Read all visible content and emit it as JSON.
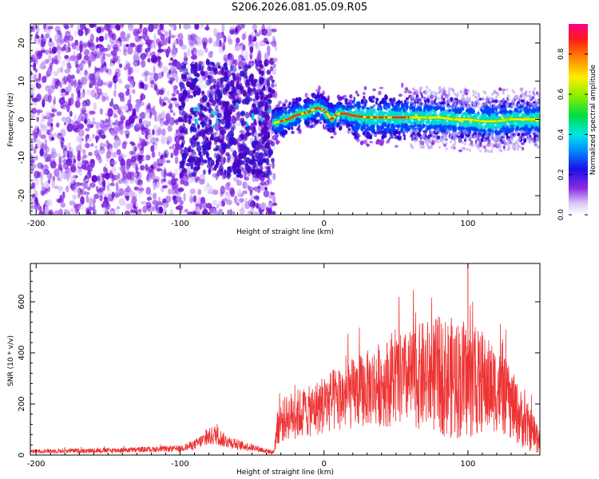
{
  "title": "S206.2026.081.05.09.R05",
  "chart_data": [
    {
      "type": "heatmap",
      "name": "spectrogram",
      "xlabel": "Height of straight line (km)",
      "ylabel": "Frequency (Hz)",
      "xlim": [
        -204,
        150
      ],
      "ylim": [
        -25,
        25
      ],
      "xticks": [
        -200,
        -100,
        0,
        100
      ],
      "yticks": [
        -20,
        -10,
        0,
        10,
        20
      ],
      "colorbar": {
        "label": "Normalized spectral amplitude",
        "range": [
          0,
          0.95
        ],
        "ticks": [
          0.0,
          0.2,
          0.4,
          0.6,
          0.8
        ]
      },
      "ridge": {
        "x": [
          -35,
          -30,
          -25,
          -20,
          -15,
          -10,
          -5,
          0,
          5,
          10,
          15,
          20,
          30,
          40,
          50,
          60,
          70,
          80,
          90,
          100,
          110,
          120,
          130,
          140,
          150
        ],
        "y": [
          -1,
          -0.5,
          0,
          1,
          1.5,
          2,
          3,
          2.5,
          0,
          1.5,
          1.5,
          1,
          0.5,
          0.5,
          0.5,
          0.5,
          0.5,
          0.5,
          0,
          0,
          -0.5,
          -0.5,
          0,
          0,
          0
        ]
      }
    },
    {
      "type": "line",
      "name": "snr",
      "xlabel": "Height of straight line (km)",
      "ylabel": "SNR (10 * v/v)",
      "xlim": [
        -204,
        150
      ],
      "ylim": [
        0,
        750
      ],
      "xticks": [
        -200,
        -100,
        0,
        100
      ],
      "yticks": [
        0,
        200,
        400,
        600
      ],
      "color": "#ee3333",
      "envelope": {
        "x": [
          -204,
          -150,
          -100,
          -90,
          -80,
          -75,
          -70,
          -60,
          -50,
          -35,
          -32,
          -25,
          -20,
          -10,
          0,
          10,
          20,
          30,
          40,
          50,
          60,
          70,
          80,
          90,
          100,
          110,
          120,
          130,
          140,
          150
        ],
        "mean": [
          15,
          18,
          25,
          40,
          70,
          80,
          60,
          40,
          30,
          10,
          120,
          150,
          160,
          170,
          200,
          220,
          240,
          260,
          280,
          290,
          300,
          310,
          310,
          300,
          290,
          280,
          260,
          200,
          120,
          60
        ],
        "amp": [
          8,
          10,
          12,
          20,
          35,
          40,
          30,
          20,
          15,
          8,
          80,
          90,
          100,
          100,
          120,
          130,
          140,
          150,
          170,
          180,
          190,
          220,
          230,
          240,
          230,
          200,
          170,
          140,
          100,
          60
        ]
      },
      "peak": {
        "x": 100,
        "y": 750
      }
    }
  ]
}
